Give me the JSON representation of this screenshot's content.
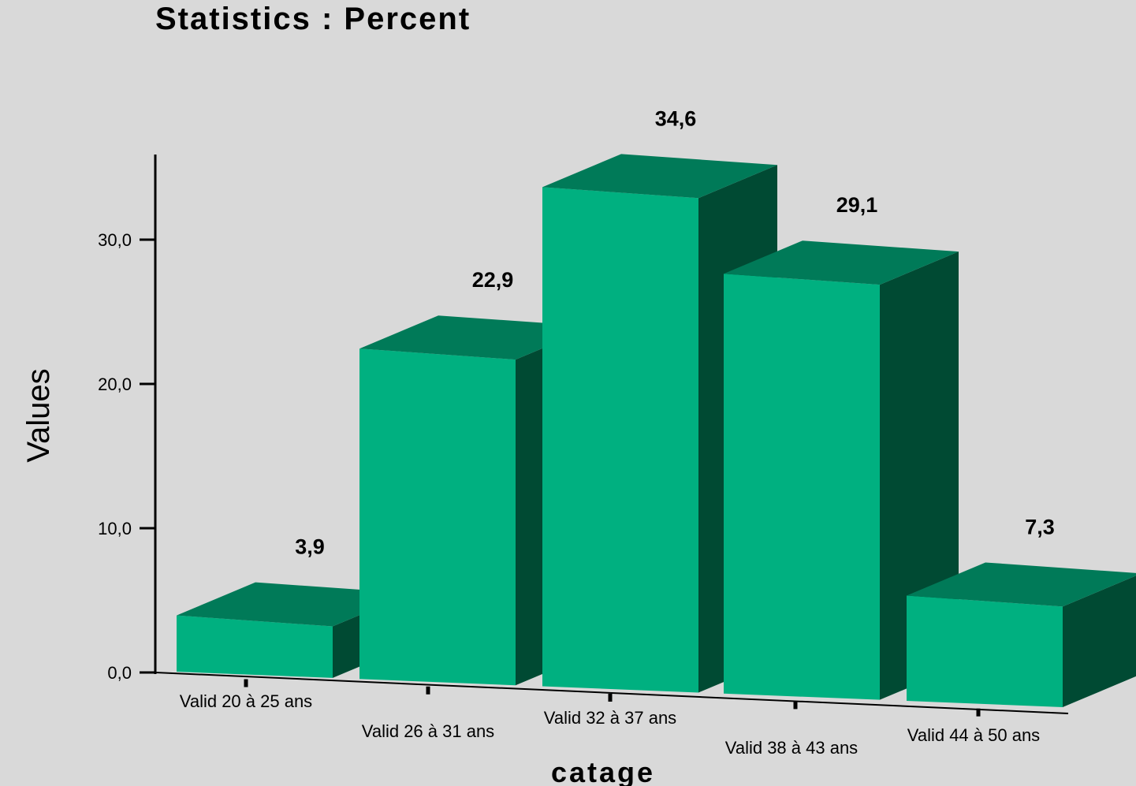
{
  "chart_data": {
    "type": "bar",
    "title": "Statistics : Percent",
    "xlabel": "catage",
    "ylabel": "Values",
    "categories": [
      "Valid 20 à 25 ans",
      "Valid 26 à 31 ans",
      "Valid 32 à 37 ans",
      "Valid 38 à 43 ans",
      "Valid 44 à 50 ans"
    ],
    "values": [
      3.9,
      22.9,
      34.6,
      29.1,
      7.3
    ],
    "data_labels": [
      "3,9",
      "22,9",
      "34,6",
      "29,1",
      "7,3"
    ],
    "yticks": [
      0,
      10,
      20,
      30
    ],
    "ytick_labels": [
      "0,0",
      "10,0",
      "20,0",
      "30,0"
    ],
    "ylim": [
      0,
      36
    ],
    "grid": false,
    "legend": "none",
    "three_d": true,
    "colors": {
      "background": "#d9d9d9",
      "bar_front": "#00b080",
      "bar_top": "#007a58",
      "bar_side": "#004a33",
      "axis": "#000000"
    }
  }
}
